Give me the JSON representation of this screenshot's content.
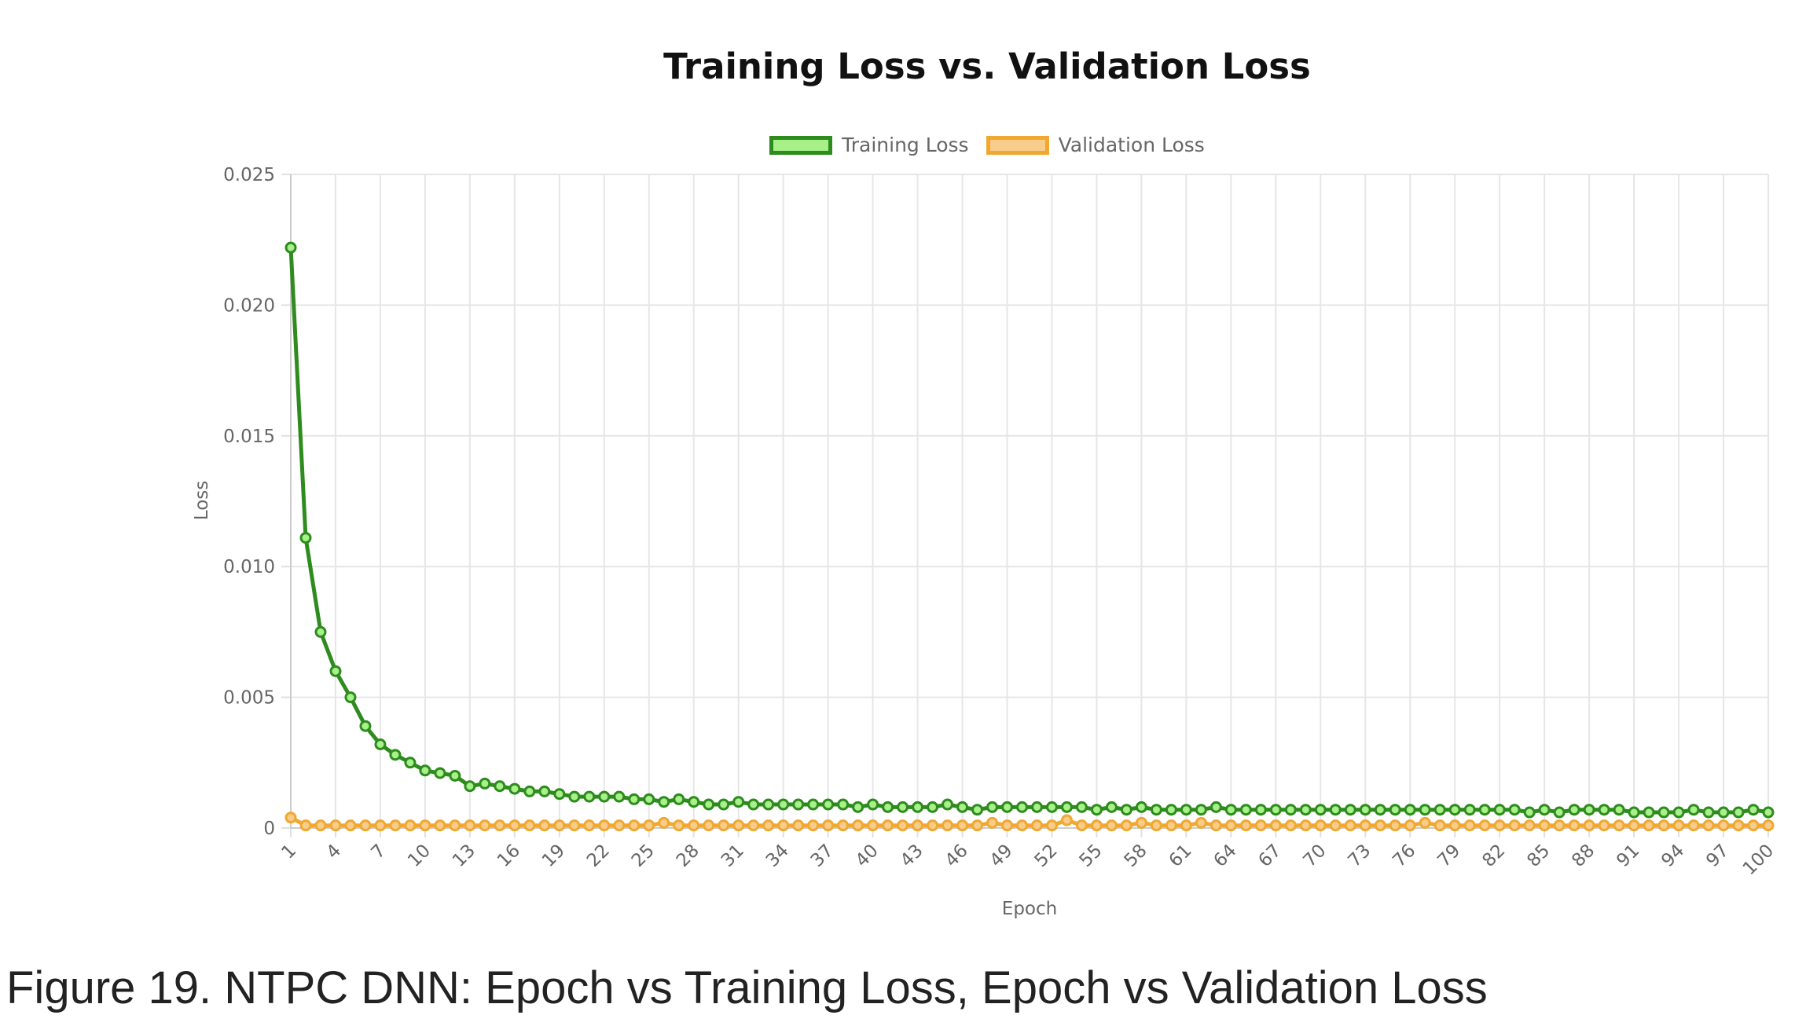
{
  "caption": "Figure 19. NTPC DNN: Epoch vs Training Loss, Epoch vs Validation Loss",
  "chart_data": {
    "type": "line",
    "title": "Training Loss vs. Validation Loss",
    "xlabel": "Epoch",
    "ylabel": "Loss",
    "ylim": [
      0,
      0.025
    ],
    "y_ticks": [
      "0",
      "0.005",
      "0.010",
      "0.015",
      "0.020",
      "0.025"
    ],
    "x_tick_labels": [
      "1",
      "4",
      "7",
      "10",
      "13",
      "16",
      "19",
      "22",
      "25",
      "28",
      "31",
      "34",
      "37",
      "40",
      "43",
      "46",
      "49",
      "52",
      "55",
      "58",
      "61",
      "64",
      "67",
      "70",
      "73",
      "76",
      "79",
      "82",
      "85",
      "88",
      "91",
      "94",
      "97",
      "100"
    ],
    "grid": true,
    "legend_position": "top",
    "x": [
      1,
      2,
      3,
      4,
      5,
      6,
      7,
      8,
      9,
      10,
      11,
      12,
      13,
      14,
      15,
      16,
      17,
      18,
      19,
      20,
      21,
      22,
      23,
      24,
      25,
      26,
      27,
      28,
      29,
      30,
      31,
      32,
      33,
      34,
      35,
      36,
      37,
      38,
      39,
      40,
      41,
      42,
      43,
      44,
      45,
      46,
      47,
      48,
      49,
      50,
      51,
      52,
      53,
      54,
      55,
      56,
      57,
      58,
      59,
      60,
      61,
      62,
      63,
      64,
      65,
      66,
      67,
      68,
      69,
      70,
      71,
      72,
      73,
      74,
      75,
      76,
      77,
      78,
      79,
      80,
      81,
      82,
      83,
      84,
      85,
      86,
      87,
      88,
      89,
      90,
      91,
      92,
      93,
      94,
      95,
      96,
      97,
      98,
      99,
      100
    ],
    "series": [
      {
        "name": "Training Loss",
        "line_color": "#2e8b1e",
        "fill_color": "#a8f08a",
        "values": [
          0.0222,
          0.0111,
          0.0075,
          0.006,
          0.005,
          0.0039,
          0.0032,
          0.0028,
          0.0025,
          0.0022,
          0.0021,
          0.002,
          0.0016,
          0.0017,
          0.0016,
          0.0015,
          0.0014,
          0.0014,
          0.0013,
          0.0012,
          0.0012,
          0.0012,
          0.0012,
          0.0011,
          0.0011,
          0.001,
          0.0011,
          0.001,
          0.0009,
          0.0009,
          0.001,
          0.0009,
          0.0009,
          0.0009,
          0.0009,
          0.0009,
          0.0009,
          0.0009,
          0.0008,
          0.0009,
          0.0008,
          0.0008,
          0.0008,
          0.0008,
          0.0009,
          0.0008,
          0.0007,
          0.0008,
          0.0008,
          0.0008,
          0.0008,
          0.0008,
          0.0008,
          0.0008,
          0.0007,
          0.0008,
          0.0007,
          0.0008,
          0.0007,
          0.0007,
          0.0007,
          0.0007,
          0.0008,
          0.0007,
          0.0007,
          0.0007,
          0.0007,
          0.0007,
          0.0007,
          0.0007,
          0.0007,
          0.0007,
          0.0007,
          0.0007,
          0.0007,
          0.0007,
          0.0007,
          0.0007,
          0.0007,
          0.0007,
          0.0007,
          0.0007,
          0.0007,
          0.0006,
          0.0007,
          0.0006,
          0.0007,
          0.0007,
          0.0007,
          0.0007,
          0.0006,
          0.0006,
          0.0006,
          0.0006,
          0.0007,
          0.0006,
          0.0006,
          0.0006,
          0.0007,
          0.0006
        ]
      },
      {
        "name": "Validation Loss",
        "line_color": "#f0a830",
        "fill_color": "#f8cc8a",
        "values": [
          0.0004,
          0.0001,
          0.0001,
          0.0001,
          0.0001,
          0.0001,
          0.0001,
          0.0001,
          0.0001,
          0.0001,
          0.0001,
          0.0001,
          0.0001,
          0.0001,
          0.0001,
          0.0001,
          0.0001,
          0.0001,
          0.0001,
          0.0001,
          0.0001,
          0.0001,
          0.0001,
          0.0001,
          0.0001,
          0.0002,
          0.0001,
          0.0001,
          0.0001,
          0.0001,
          0.0001,
          0.0001,
          0.0001,
          0.0001,
          0.0001,
          0.0001,
          0.0001,
          0.0001,
          0.0001,
          0.0001,
          0.0001,
          0.0001,
          0.0001,
          0.0001,
          0.0001,
          0.0001,
          0.0001,
          0.0002,
          0.0001,
          0.0001,
          0.0001,
          0.0001,
          0.0003,
          0.0001,
          0.0001,
          0.0001,
          0.0001,
          0.0002,
          0.0001,
          0.0001,
          0.0001,
          0.0002,
          0.0001,
          0.0001,
          0.0001,
          0.0001,
          0.0001,
          0.0001,
          0.0001,
          0.0001,
          0.0001,
          0.0001,
          0.0001,
          0.0001,
          0.0001,
          0.0001,
          0.0002,
          0.0001,
          0.0001,
          0.0001,
          0.0001,
          0.0001,
          0.0001,
          0.0001,
          0.0001,
          0.0001,
          0.0001,
          0.0001,
          0.0001,
          0.0001,
          0.0001,
          0.0001,
          0.0001,
          0.0001,
          0.0001,
          0.0001,
          0.0001,
          0.0001,
          0.0001,
          0.0001
        ]
      }
    ]
  }
}
